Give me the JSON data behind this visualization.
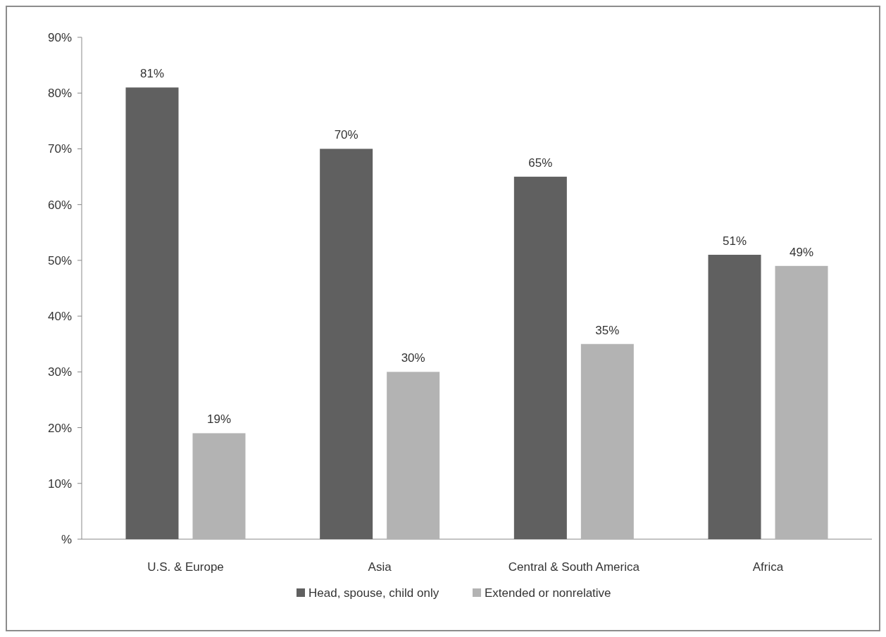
{
  "chart_data": {
    "type": "bar",
    "categories": [
      "U.S. & Europe",
      "Asia",
      "Central & South America",
      "Africa"
    ],
    "series": [
      {
        "name": "Head, spouse, child only",
        "color": "#606060",
        "values": [
          81,
          70,
          65,
          51
        ],
        "value_labels": [
          "81%",
          "70%",
          "65%",
          "51%"
        ]
      },
      {
        "name": "Extended or nonrelative",
        "color": "#b3b3b3",
        "values": [
          19,
          30,
          35,
          49
        ],
        "value_labels": [
          "19%",
          "30%",
          "35%",
          "49%"
        ]
      }
    ],
    "ylim": [
      0,
      90
    ],
    "yticks": [
      {
        "value": 0,
        "label": "%"
      },
      {
        "value": 10,
        "label": "10%"
      },
      {
        "value": 20,
        "label": "20%"
      },
      {
        "value": 30,
        "label": "30%"
      },
      {
        "value": 40,
        "label": "40%"
      },
      {
        "value": 50,
        "label": "50%"
      },
      {
        "value": 60,
        "label": "60%"
      },
      {
        "value": 70,
        "label": "70%"
      },
      {
        "value": 80,
        "label": "80%"
      },
      {
        "value": 90,
        "label": "90%"
      }
    ],
    "grid": false,
    "legend": "bottom"
  }
}
